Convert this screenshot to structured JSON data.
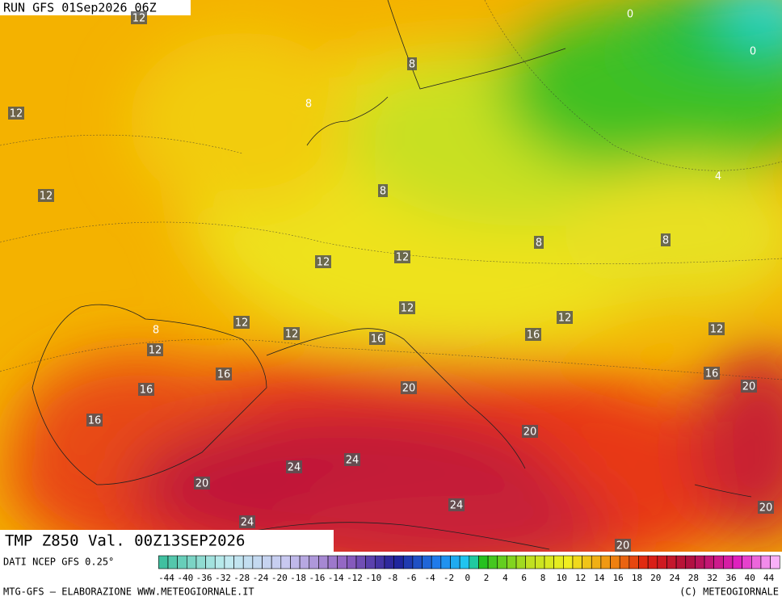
{
  "run_label": "RUN GFS 01Sep2026 06Z",
  "map_title": "TMP Z850 Val. 00Z13SEP2026",
  "source": "DATI NCEP GFS 0.25°",
  "credit": "MTG-GFS — ELABORAZIONE WWW.METEOGIORNALE.IT",
  "copyright": "(C) METEOGIORNALE",
  "contour_labels": [
    "12",
    "8",
    "12",
    "8",
    "12",
    "8",
    "4",
    "0",
    "0",
    "8",
    "8",
    "12",
    "12",
    "12",
    "12",
    "8",
    "12",
    "12",
    "16",
    "12",
    "16",
    "12",
    "16",
    "16",
    "16",
    "20",
    "20",
    "16",
    "20",
    "24",
    "24",
    "20",
    "24",
    "24",
    "20",
    "20"
  ],
  "colorbar_ticks": [
    -44,
    -40,
    -36,
    -32,
    -28,
    -24,
    -20,
    -18,
    -16,
    -14,
    -12,
    -10,
    -8,
    -6,
    -4,
    -2,
    0,
    2,
    4,
    6,
    8,
    10,
    12,
    14,
    16,
    18,
    20,
    24,
    28,
    32,
    36,
    40,
    44
  ]
}
